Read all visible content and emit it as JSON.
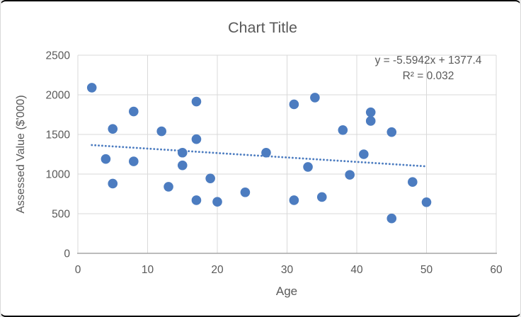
{
  "chart_data": {
    "type": "scatter",
    "title": "Chart Title",
    "xlabel": "Age",
    "ylabel": "Assessed Value ($'000)",
    "xlim": [
      0,
      60
    ],
    "ylim": [
      0,
      2500
    ],
    "x_ticks": [
      0,
      10,
      20,
      30,
      40,
      50,
      60
    ],
    "y_ticks": [
      0,
      500,
      1000,
      1500,
      2000,
      2500
    ],
    "grid": true,
    "legend": "none",
    "points": [
      [
        2,
        2090
      ],
      [
        4,
        1190
      ],
      [
        5,
        1570
      ],
      [
        5,
        880
      ],
      [
        8,
        1790
      ],
      [
        8,
        1160
      ],
      [
        12,
        1540
      ],
      [
        13,
        840
      ],
      [
        15,
        1270
      ],
      [
        15,
        1110
      ],
      [
        17,
        1915
      ],
      [
        17,
        1440
      ],
      [
        17,
        670
      ],
      [
        19,
        945
      ],
      [
        20,
        650
      ],
      [
        24,
        770
      ],
      [
        27,
        1270
      ],
      [
        31,
        1880
      ],
      [
        31,
        670
      ],
      [
        33,
        1090
      ],
      [
        34,
        1965
      ],
      [
        35,
        710
      ],
      [
        38,
        1555
      ],
      [
        39,
        990
      ],
      [
        41,
        1250
      ],
      [
        42,
        1780
      ],
      [
        42,
        1670
      ],
      [
        45,
        1530
      ],
      [
        45,
        440
      ],
      [
        48,
        900
      ],
      [
        50,
        645
      ]
    ],
    "trendline": {
      "slope": -5.5942,
      "intercept": 1377.4,
      "x_start": 2,
      "x_end": 50,
      "style": "dotted"
    },
    "annotation": {
      "line1": "y = -5.5942x + 1377.4",
      "line2": "R² = 0.032"
    },
    "colors": {
      "marker": "#4C7CC0",
      "trendline": "#4C7CC0",
      "gridline": "#D9D9D9",
      "axis_line": "#A6A6A6",
      "text": "#595959"
    }
  }
}
